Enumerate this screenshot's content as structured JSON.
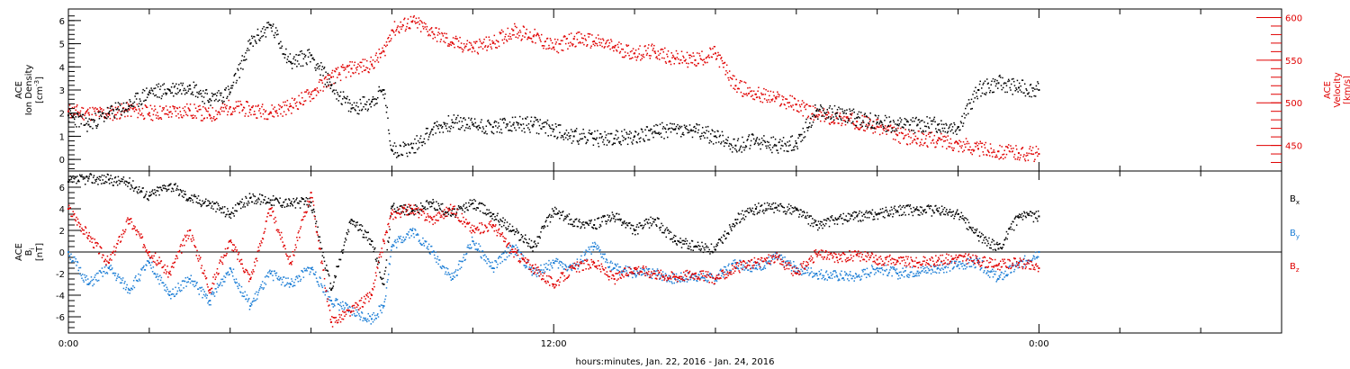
{
  "colors": {
    "black": "#000000",
    "red": "#e00000",
    "blue": "#1e7fd6"
  },
  "x_axis": {
    "label": "hours:minutes, Jan. 22, 2016 - Jan. 24, 2016",
    "tick_labels": [
      "0:00",
      "12:00",
      "0:00"
    ]
  },
  "top_panel": {
    "ylabel_lines": [
      "ACE",
      "Ion Density"
    ],
    "ylabel_unit_pre": "[cm",
    "ylabel_unit_exp": "-3",
    "ylabel_unit_post": "]",
    "left_ticks": [
      "0",
      "1",
      "2",
      "3",
      "4",
      "5",
      "6"
    ],
    "right_ylabel_lines": [
      "ACE",
      "Velocity"
    ],
    "right_ylabel_unit": "[km/s]",
    "right_ticks": [
      "450",
      "500",
      "550",
      "600"
    ]
  },
  "bottom_panel": {
    "ylabel_lines": [
      "ACE",
      "B"
    ],
    "ylabel_sub": "i",
    "ylabel_unit": "[nT]",
    "ticks": [
      "-6",
      "-4",
      "-2",
      "0",
      "2",
      "4",
      "6"
    ],
    "legend": [
      {
        "letter": "B",
        "sub": "x",
        "color": "#000000"
      },
      {
        "letter": "B",
        "sub": "y",
        "color": "#1e7fd6"
      },
      {
        "letter": "B",
        "sub": "z",
        "color": "#e00000"
      }
    ]
  },
  "chart_data": [
    {
      "type": "scatter",
      "panel": "top",
      "x_unit": "hours since 0:00 Jan. 22, 2016",
      "xlim": [
        0,
        30
      ],
      "series": [
        {
          "axis": "left",
          "ylim": [
            -0.5,
            6.5
          ],
          "x": [
            0.0,
            0.5,
            1.0,
            1.5,
            2.0,
            2.5,
            3.0,
            3.5,
            4.0,
            4.5,
            5.0,
            5.5,
            6.0,
            6.5,
            7.0,
            7.5,
            7.8,
            8.0,
            8.5,
            9.0,
            9.5,
            10.0,
            10.5,
            11.0,
            11.5,
            12.0,
            12.5,
            13.0,
            13.5,
            14.0,
            14.5,
            15.0,
            15.5,
            16.0,
            16.5,
            17.0,
            17.5,
            18.0,
            18.5,
            19.0,
            19.5,
            20.0,
            20.5,
            21.0,
            21.5,
            22.0,
            22.5,
            23.0,
            23.5,
            24.0
          ],
          "y": [
            1.9,
            1.5,
            2.0,
            2.3,
            2.9,
            3.0,
            3.2,
            2.6,
            2.9,
            5.0,
            5.8,
            4.2,
            4.5,
            3.2,
            2.2,
            2.5,
            3.0,
            0.4,
            0.5,
            1.3,
            1.6,
            1.5,
            1.4,
            1.5,
            1.5,
            1.3,
            1.0,
            0.9,
            0.9,
            1.0,
            1.2,
            1.3,
            1.2,
            1.0,
            0.6,
            0.8,
            0.6,
            0.7,
            2.1,
            2.0,
            1.8,
            1.6,
            1.5,
            1.5,
            1.5,
            1.4,
            3.0,
            3.3,
            3.1,
            3.0
          ]
        },
        {
          "axis": "right",
          "ylim": [
            420,
            610
          ],
          "x": [
            0.0,
            0.5,
            1.0,
            1.5,
            2.0,
            2.5,
            3.0,
            3.5,
            4.0,
            4.5,
            5.0,
            5.5,
            6.0,
            6.5,
            7.0,
            7.5,
            7.8,
            8.0,
            8.5,
            9.0,
            9.5,
            10.0,
            10.5,
            11.0,
            11.5,
            12.0,
            12.5,
            13.0,
            13.5,
            14.0,
            14.5,
            15.0,
            15.5,
            16.0,
            16.5,
            17.0,
            17.5,
            18.0,
            18.5,
            19.0,
            19.5,
            20.0,
            20.5,
            21.0,
            21.5,
            22.0,
            22.5,
            23.0,
            23.5,
            24.0
          ],
          "y": [
            490,
            488,
            487,
            492,
            488,
            489,
            491,
            485,
            495,
            492,
            489,
            496,
            510,
            530,
            540,
            545,
            560,
            585,
            595,
            583,
            570,
            565,
            570,
            585,
            578,
            565,
            575,
            572,
            565,
            558,
            560,
            552,
            550,
            558,
            520,
            510,
            505,
            498,
            485,
            482,
            478,
            472,
            462,
            458,
            456,
            452,
            446,
            443,
            441,
            440
          ]
        }
      ]
    },
    {
      "type": "scatter",
      "panel": "bottom",
      "x_unit": "hours since 0:00 Jan. 22, 2016",
      "xlim": [
        0,
        30
      ],
      "ylim": [
        -7.5,
        7.5
      ],
      "series": [
        {
          "name": "Bx",
          "x": [
            0.0,
            0.5,
            1.0,
            1.5,
            2.0,
            2.5,
            3.0,
            3.5,
            4.0,
            4.5,
            5.0,
            5.5,
            6.0,
            6.5,
            7.0,
            7.5,
            7.8,
            8.0,
            8.5,
            9.0,
            9.5,
            10.0,
            10.5,
            11.0,
            11.5,
            12.0,
            12.5,
            13.0,
            13.5,
            14.0,
            14.5,
            15.0,
            15.5,
            16.0,
            16.5,
            17.0,
            17.5,
            18.0,
            18.5,
            19.0,
            19.5,
            20.0,
            20.5,
            21.0,
            21.5,
            22.0,
            22.5,
            23.0,
            23.5,
            24.0
          ],
          "y": [
            6.5,
            6.8,
            6.7,
            6.4,
            5.2,
            6.2,
            5.0,
            4.5,
            3.5,
            5.0,
            4.8,
            4.5,
            4.6,
            -3.5,
            3.0,
            1.0,
            -3.0,
            4.2,
            3.8,
            4.5,
            3.5,
            4.5,
            3.5,
            2.0,
            0.5,
            3.8,
            2.8,
            2.5,
            3.3,
            2.0,
            3.0,
            1.0,
            0.5,
            0.2,
            3.0,
            4.0,
            4.1,
            3.9,
            2.5,
            3.0,
            3.3,
            3.5,
            3.8,
            3.9,
            3.8,
            3.5,
            1.5,
            0.3,
            3.2,
            3.3
          ]
        },
        {
          "name": "By",
          "x": [
            0.0,
            0.5,
            1.0,
            1.5,
            2.0,
            2.5,
            3.0,
            3.5,
            4.0,
            4.5,
            5.0,
            5.5,
            6.0,
            6.5,
            7.0,
            7.5,
            7.8,
            8.0,
            8.5,
            9.0,
            9.5,
            10.0,
            10.5,
            11.0,
            11.5,
            12.0,
            12.5,
            13.0,
            13.5,
            14.0,
            14.5,
            15.0,
            15.5,
            16.0,
            16.5,
            17.0,
            17.5,
            18.0,
            18.5,
            19.0,
            19.5,
            20.0,
            20.5,
            21.0,
            21.5,
            22.0,
            22.5,
            23.0,
            23.5,
            24.0
          ],
          "y": [
            0.0,
            -3.0,
            -1.5,
            -3.5,
            -1.0,
            -4.0,
            -2.5,
            -4.5,
            -1.5,
            -5.0,
            -2.0,
            -3.0,
            -1.5,
            -4.5,
            -5.5,
            -6.2,
            -5.0,
            0.5,
            2.0,
            0.0,
            -2.5,
            1.0,
            -1.5,
            0.5,
            -2.0,
            -1.0,
            -1.5,
            0.5,
            -1.5,
            -2.0,
            -2.0,
            -2.5,
            -2.2,
            -2.5,
            -1.0,
            -1.5,
            -0.5,
            -1.5,
            -2.0,
            -2.2,
            -2.3,
            -1.5,
            -2.0,
            -1.8,
            -1.5,
            -1.2,
            -1.0,
            -2.5,
            -1.2,
            0.0
          ]
        },
        {
          "name": "Bz",
          "x": [
            0.0,
            0.5,
            1.0,
            1.5,
            2.0,
            2.5,
            3.0,
            3.5,
            4.0,
            4.5,
            5.0,
            5.5,
            6.0,
            6.5,
            7.0,
            7.5,
            7.8,
            8.0,
            8.5,
            9.0,
            9.5,
            10.0,
            10.5,
            11.0,
            11.5,
            12.0,
            12.5,
            13.0,
            13.5,
            14.0,
            14.5,
            15.0,
            15.5,
            16.0,
            16.5,
            17.0,
            17.5,
            18.0,
            18.5,
            19.0,
            19.5,
            20.0,
            20.5,
            21.0,
            21.5,
            22.0,
            22.5,
            23.0,
            23.5,
            24.0
          ],
          "y": [
            4.0,
            1.5,
            -1.0,
            3.0,
            0.0,
            -2.0,
            2.0,
            -3.5,
            1.0,
            -2.5,
            4.0,
            -1.0,
            5.5,
            -6.5,
            -5.5,
            -4.0,
            1.0,
            3.5,
            4.0,
            3.0,
            4.0,
            2.0,
            2.5,
            0.0,
            -1.5,
            -3.0,
            -1.5,
            -1.0,
            -2.5,
            -1.5,
            -2.0,
            -2.3,
            -2.0,
            -2.5,
            -1.5,
            -1.0,
            -0.5,
            -2.0,
            -0.2,
            -0.5,
            -0.3,
            -0.7,
            -0.8,
            -1.0,
            -0.8,
            -0.5,
            -0.8,
            -1.2,
            -1.0,
            -1.5
          ]
        }
      ]
    }
  ]
}
